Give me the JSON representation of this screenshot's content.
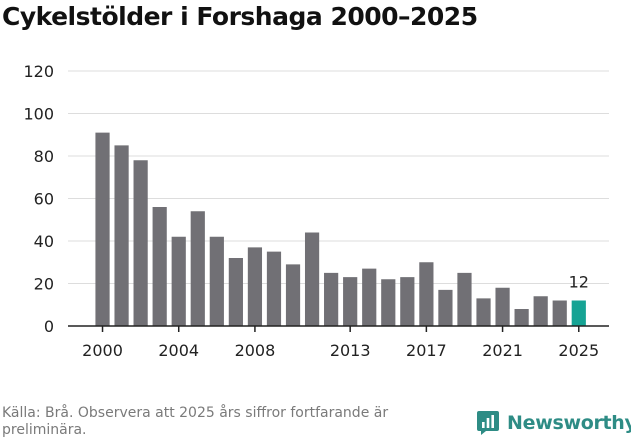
{
  "title": "Cykelstölder i Forshaga 2000–2025",
  "source": "Källa: Brå. Observera att 2025 års siffror fortfarande är preliminära.",
  "brand": {
    "name": "Newsworthy"
  },
  "colors": {
    "bar": "#717075",
    "highlight": "#16a394",
    "grid": "#dddddd",
    "axis": "#222222",
    "brand": "#2e8c85"
  },
  "chart_data": {
    "type": "bar",
    "title": "Cykelstölder i Forshaga 2000–2025",
    "xlabel": "",
    "ylabel": "",
    "ylim": [
      0,
      120
    ],
    "yticks": [
      0,
      20,
      40,
      60,
      80,
      100,
      120
    ],
    "categories": [
      "2000",
      "2001",
      "2002",
      "2003",
      "2004",
      "2005",
      "2006",
      "2007",
      "2008",
      "2009",
      "2010",
      "2011",
      "2012",
      "2013",
      "2014",
      "2015",
      "2016",
      "2017",
      "2018",
      "2019",
      "2020",
      "2021",
      "2022",
      "2023",
      "2024",
      "2025"
    ],
    "values": [
      91,
      85,
      78,
      56,
      42,
      54,
      42,
      32,
      37,
      35,
      29,
      44,
      25,
      23,
      27,
      22,
      23,
      30,
      17,
      25,
      13,
      18,
      8,
      14,
      12,
      12
    ],
    "xtick_labels": [
      "2000",
      "2004",
      "2008",
      "2013",
      "2017",
      "2021",
      "2025"
    ],
    "highlight": {
      "category": "2025",
      "label": "12"
    }
  }
}
